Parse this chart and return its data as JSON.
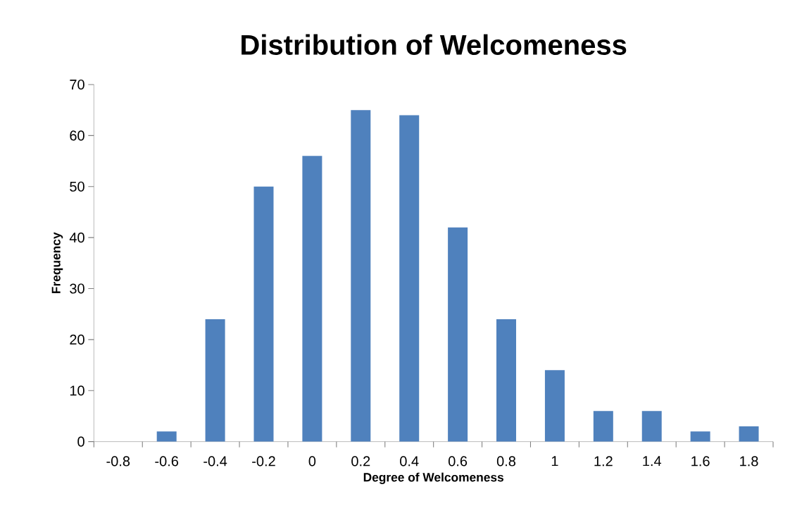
{
  "chart_data": {
    "type": "bar",
    "title": "Distribution of Welcomeness",
    "xlabel": "Degree of Welcomeness",
    "ylabel": "Frequency",
    "categories": [
      "-0.8",
      "-0.6",
      "-0.4",
      "-0.2",
      "0",
      "0.2",
      "0.4",
      "0.6",
      "0.8",
      "1",
      "1.2",
      "1.4",
      "1.6",
      "1.8"
    ],
    "values": [
      0,
      2,
      24,
      50,
      56,
      65,
      64,
      42,
      24,
      14,
      6,
      6,
      2,
      3
    ],
    "color": "#4f81bd",
    "ylim": [
      0,
      70
    ],
    "yticks": [
      0,
      10,
      20,
      30,
      40,
      50,
      60,
      70
    ],
    "grid": false
  }
}
